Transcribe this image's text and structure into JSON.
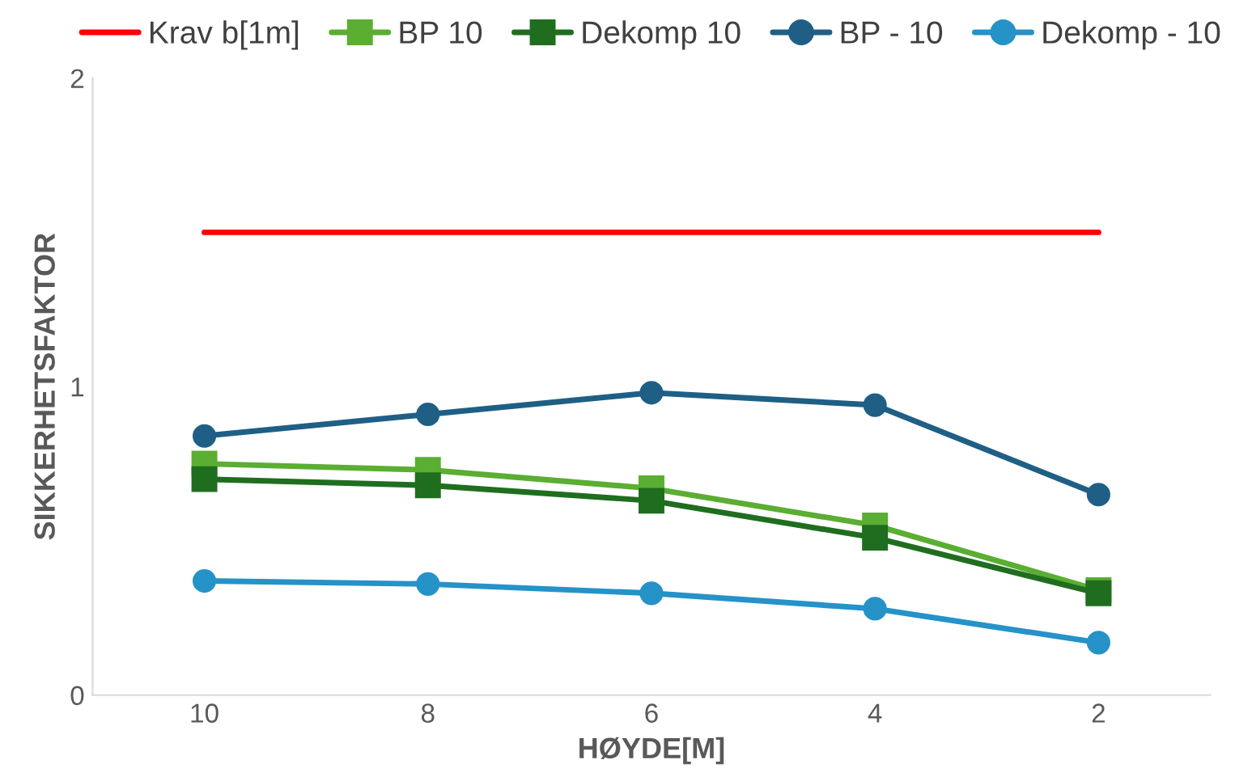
{
  "chart_data": {
    "type": "line",
    "xlabel": "HØYDE[M]",
    "ylabel": "SIKKERHETSFAKTOR",
    "categories": [
      "10",
      "8",
      "6",
      "4",
      "2"
    ],
    "series": [
      {
        "name": "Krav b[1m]",
        "color": "#ff0000",
        "marker": "none",
        "values": [
          1.5,
          1.5,
          1.5,
          1.5,
          1.5
        ]
      },
      {
        "name": "BP 10",
        "color": "#5aae32",
        "marker": "square",
        "values": [
          0.75,
          0.73,
          0.67,
          0.55,
          0.34
        ]
      },
      {
        "name": "Dekomp 10",
        "color": "#1f6e1f",
        "marker": "square",
        "values": [
          0.7,
          0.68,
          0.63,
          0.51,
          0.33
        ]
      },
      {
        "name": "BP - 10",
        "color": "#1f5f85",
        "marker": "circle",
        "values": [
          0.84,
          0.91,
          0.98,
          0.94,
          0.65
        ]
      },
      {
        "name": "Dekomp - 10",
        "color": "#2592c8",
        "marker": "circle",
        "values": [
          0.37,
          0.36,
          0.33,
          0.28,
          0.17
        ]
      }
    ],
    "ylim": [
      0,
      2
    ],
    "yticks": [
      0,
      1,
      2
    ],
    "grid": false,
    "legend": "top",
    "line_style": "solid"
  }
}
